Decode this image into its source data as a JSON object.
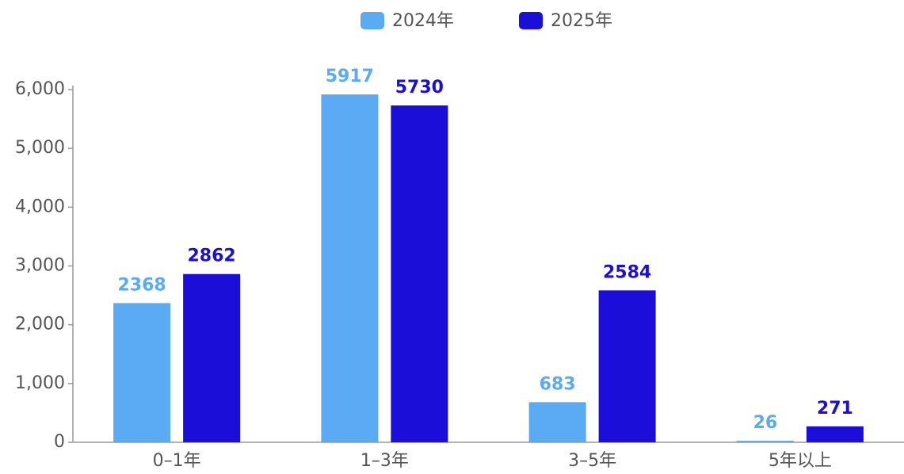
{
  "chart_data": {
    "type": "bar",
    "categories": [
      "0–1年",
      "1–3年",
      "3–5年",
      "5年以上"
    ],
    "series": [
      {
        "name": "2024年",
        "color": "#5aabf4",
        "values": [
          2368,
          5917,
          683,
          26
        ]
      },
      {
        "name": "2025年",
        "color": "#1a0ed8",
        "values": [
          2862,
          5730,
          2584,
          271
        ]
      }
    ],
    "ylim": [
      0,
      6000
    ],
    "yticks": [
      0,
      {
        "value": 1000,
        "label": "1,000"
      },
      {
        "value": 2000,
        "label": "2,000"
      },
      {
        "value": 3000,
        "label": "3,000"
      },
      {
        "value": 4000,
        "label": "4,000"
      },
      {
        "value": 5000,
        "label": "5,000"
      },
      {
        "value": 6000,
        "label": "6,000"
      }
    ],
    "grid": false,
    "legend": "top"
  }
}
